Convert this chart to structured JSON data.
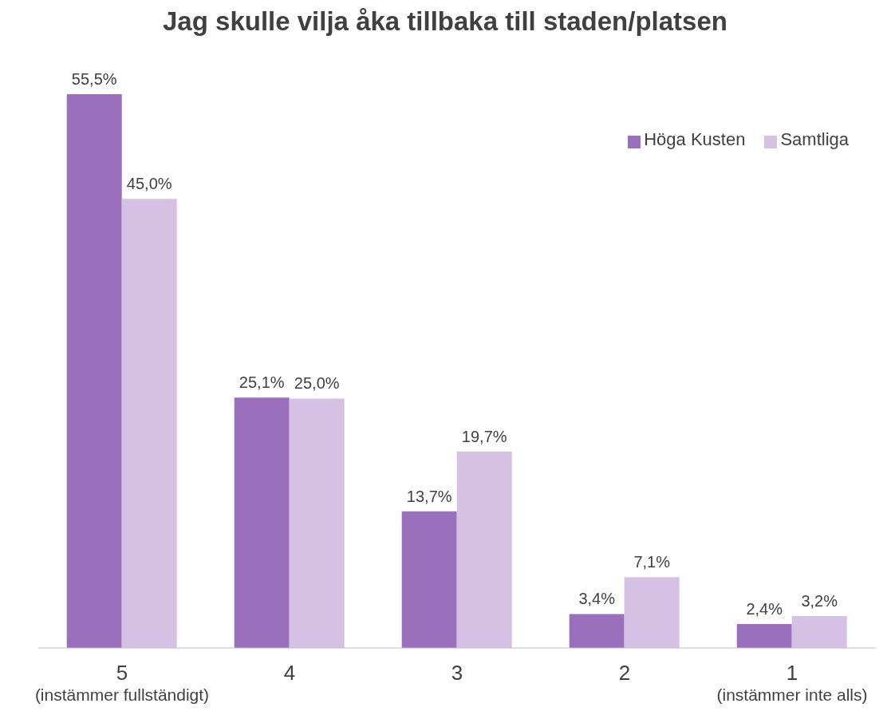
{
  "chart_data": {
    "type": "bar",
    "title": "Jag skulle vilja åka tillbaka till staden/platsen",
    "categories": [
      "5\n(instämmer fullständigt)",
      "4",
      "3",
      "2",
      "1\n(instämmer inte alls)"
    ],
    "series": [
      {
        "name": "Höga Kusten",
        "color": "#9a6fbc",
        "values": [
          55.5,
          25.1,
          13.7,
          3.4,
          2.4
        ],
        "value_labels": [
          "55,5%",
          "25,1%",
          "13,7%",
          "3,4%",
          "2,4%"
        ]
      },
      {
        "name": "Samtliga",
        "color": "#d4c1e3",
        "values": [
          45.0,
          25.0,
          19.7,
          7.1,
          3.2
        ],
        "value_labels": [
          "45,0%",
          "25,0%",
          "19,7%",
          "7,1%",
          "3,2%"
        ]
      }
    ],
    "legend": "top right",
    "grid": false
  }
}
